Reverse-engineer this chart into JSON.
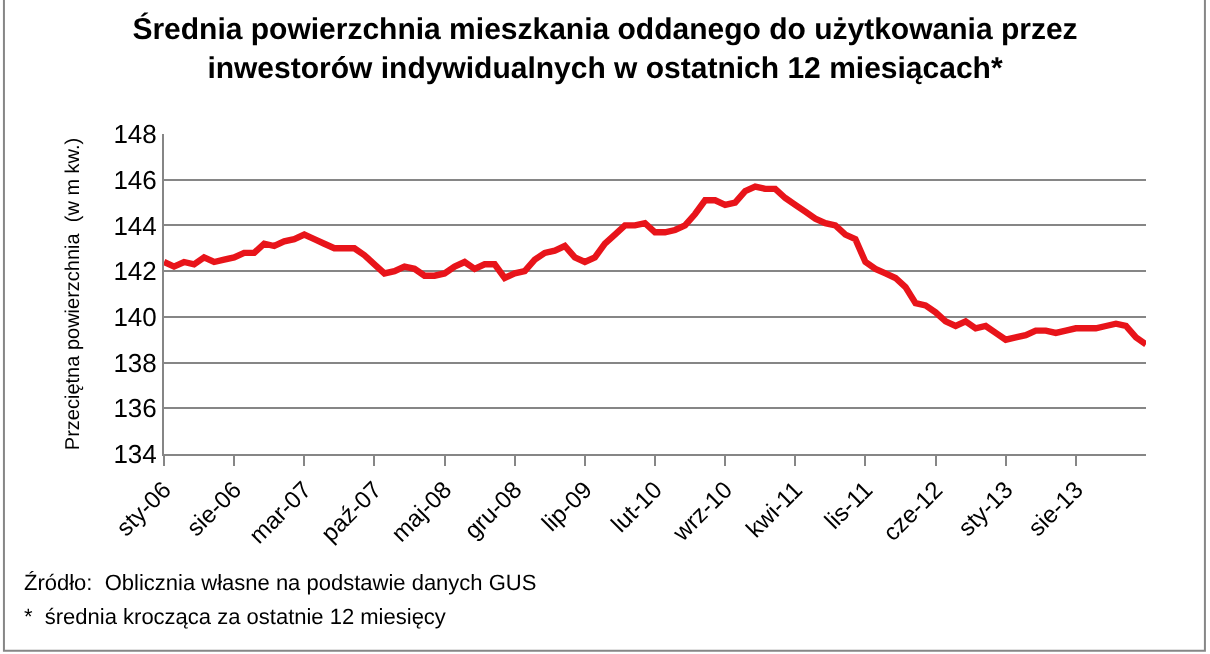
{
  "chart_data": {
    "type": "line",
    "title": "Średnia powierzchnia mieszkania oddanego do użytkowania przez\ninwestorów indywidualnych w ostatnich 12 miesiącach*",
    "ylabel": "Przeciętna powierzchnia  (w m kw.)",
    "categories": [
      "sty-06",
      null,
      null,
      null,
      null,
      null,
      null,
      "sie-06",
      null,
      null,
      null,
      null,
      null,
      null,
      "mar-07",
      null,
      null,
      null,
      null,
      null,
      null,
      "paź-07",
      null,
      null,
      null,
      null,
      null,
      null,
      "maj-08",
      null,
      null,
      null,
      null,
      null,
      null,
      "gru-08",
      null,
      null,
      null,
      null,
      null,
      null,
      "lip-09",
      null,
      null,
      null,
      null,
      null,
      null,
      "lut-10",
      null,
      null,
      null,
      null,
      null,
      null,
      "wrz-10",
      null,
      null,
      null,
      null,
      null,
      null,
      "kwi-11",
      null,
      null,
      null,
      null,
      null,
      null,
      "lis-11",
      null,
      null,
      null,
      null,
      null,
      null,
      "cze-12",
      null,
      null,
      null,
      null,
      null,
      null,
      "sty-13",
      null,
      null,
      null,
      null,
      null,
      null,
      "sie-13",
      null,
      null,
      null,
      null,
      null,
      null,
      null
    ],
    "series": [
      {
        "color": "#e8141a",
        "values": [
          142.4,
          142.2,
          142.4,
          142.3,
          142.6,
          142.4,
          142.5,
          142.6,
          142.8,
          142.8,
          143.2,
          143.1,
          143.3,
          143.4,
          143.6,
          143.4,
          143.2,
          143.0,
          143.0,
          143.0,
          142.7,
          142.3,
          141.9,
          142.0,
          142.2,
          142.1,
          141.8,
          141.8,
          141.9,
          142.2,
          142.4,
          142.1,
          142.3,
          142.3,
          141.7,
          141.9,
          142.0,
          142.5,
          142.8,
          142.9,
          143.1,
          142.6,
          142.4,
          142.6,
          143.2,
          143.6,
          144.0,
          144.0,
          144.1,
          143.7,
          143.7,
          143.8,
          144.0,
          144.5,
          145.1,
          145.1,
          144.9,
          145.0,
          145.5,
          145.7,
          145.6,
          145.6,
          145.2,
          144.9,
          144.6,
          144.3,
          144.1,
          144.0,
          143.6,
          143.4,
          142.4,
          142.1,
          141.9,
          141.7,
          141.3,
          140.6,
          140.5,
          140.2,
          139.8,
          139.6,
          139.8,
          139.5,
          139.6,
          139.3,
          139.0,
          139.1,
          139.2,
          139.4,
          139.4,
          139.3,
          139.4,
          139.5,
          139.5,
          139.5,
          139.6,
          139.7,
          139.6,
          139.1,
          138.8
        ]
      }
    ],
    "ylim": [
      134,
      148
    ],
    "yticks": [
      134,
      136,
      138,
      140,
      142,
      144,
      146,
      148
    ],
    "grid": "y",
    "marker": "none",
    "line_style": "solid",
    "annotations": [
      "Źródło:  Oblicznia własne na podstawie danych GUS",
      "*  średnia krocząca za ostatnie 12 miesięcy"
    ]
  }
}
